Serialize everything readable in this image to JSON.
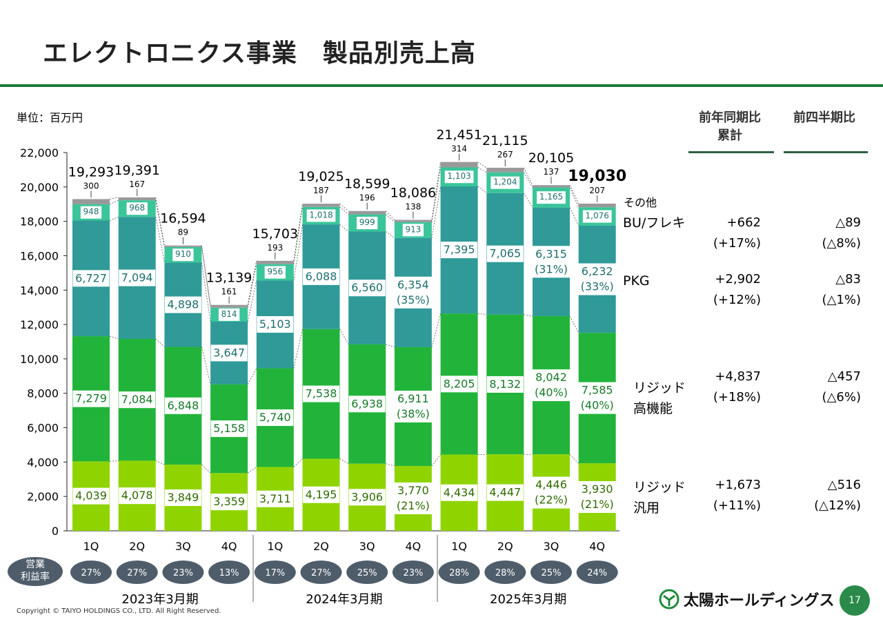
{
  "header": {
    "title": "エレクトロニクス事業　製品別売上高",
    "unit": "単位：百万円"
  },
  "compare": {
    "head_yoy": [
      "前年同期比",
      "累計"
    ],
    "head_qoq": "前四半期比",
    "rows": [
      {
        "label": [
          "BU/フレキ"
        ],
        "yoy": "+662",
        "yoy_pct": "(+17%)",
        "qoq": "△89",
        "qoq_pct": "(△8%)"
      },
      {
        "label": [
          "PKG"
        ],
        "yoy": "+2,902",
        "yoy_pct": "(+12%)",
        "qoq": "△83",
        "qoq_pct": "(△1%)"
      },
      {
        "label": [
          "リジッド",
          "高機能"
        ],
        "yoy": "+4,837",
        "yoy_pct": "(+18%)",
        "qoq": "△457",
        "qoq_pct": "(△6%)"
      },
      {
        "label": [
          "リジッド",
          "汎用"
        ],
        "yoy": "+1,673",
        "yoy_pct": "(+11%)",
        "qoq": "△516",
        "qoq_pct": "(△12%)"
      }
    ]
  },
  "chart_data": {
    "type": "bar",
    "stacked": true,
    "ylim": [
      0,
      22000
    ],
    "yticks": [
      "0",
      "2,000",
      "4,000",
      "6,000",
      "8,000",
      "10,000",
      "12,000",
      "14,000",
      "16,000",
      "18,000",
      "20,000",
      "22,000"
    ],
    "categories": [
      "1Q",
      "2Q",
      "3Q",
      "4Q",
      "1Q",
      "2Q",
      "3Q",
      "4Q",
      "1Q",
      "2Q",
      "3Q",
      "4Q"
    ],
    "groups": [
      "2023年3月期",
      "2024年3月期",
      "2025年3月期"
    ],
    "series": [
      {
        "name": "リジッド汎用",
        "color": "#8fd400",
        "values": [
          4039,
          4078,
          3849,
          3359,
          3711,
          4195,
          3906,
          3770,
          4434,
          4447,
          4446,
          3930
        ],
        "labels": [
          "4,039",
          "4,078",
          "3,849",
          "3,359",
          "3,711",
          "4,195",
          "3,906",
          "3,770",
          "4,434",
          "4,447",
          "4,446",
          "3,930"
        ],
        "pcts": [
          "",
          "",
          "",
          "",
          "",
          "",
          "",
          "(21%)",
          "",
          "",
          "(22%)",
          "(21%)"
        ]
      },
      {
        "name": "リジッド高機能",
        "color": "#22b43a",
        "values": [
          7279,
          7084,
          6848,
          5158,
          5740,
          7538,
          6938,
          6911,
          8205,
          8132,
          8042,
          7585
        ],
        "labels": [
          "7,279",
          "7,084",
          "6,848",
          "5,158",
          "5,740",
          "7,538",
          "6,938",
          "6,911",
          "8,205",
          "8,132",
          "8,042",
          "7,585"
        ],
        "pcts": [
          "",
          "",
          "",
          "",
          "",
          "",
          "",
          "(38%)",
          "",
          "",
          "(40%)",
          "(40%)"
        ]
      },
      {
        "name": "PKG",
        "color": "#2f9a98",
        "values": [
          6727,
          7094,
          4898,
          3647,
          5103,
          6088,
          6560,
          6354,
          7395,
          7065,
          6315,
          6232
        ],
        "labels": [
          "6,727",
          "7,094",
          "4,898",
          "3,647",
          "5,103",
          "6,088",
          "6,560",
          "6,354",
          "7,395",
          "7,065",
          "6,315",
          "6,232"
        ],
        "pcts": [
          "",
          "",
          "",
          "",
          "",
          "",
          "",
          "(35%)",
          "",
          "",
          "(31%)",
          "(33%)"
        ]
      },
      {
        "name": "BU/フレキ",
        "color": "#3ac59a",
        "values": [
          948,
          968,
          910,
          814,
          956,
          1018,
          999,
          913,
          1103,
          1204,
          1165,
          1076
        ],
        "labels": [
          "948",
          "968",
          "910",
          "814",
          "956",
          "1,018",
          "999",
          "913",
          "1,103",
          "1,204",
          "1,165",
          "1,076"
        ]
      },
      {
        "name": "その他",
        "color": "#999999",
        "values": [
          300,
          167,
          89,
          161,
          193,
          187,
          196,
          138,
          314,
          267,
          137,
          207
        ],
        "labels": [
          "300",
          "167",
          "89",
          "161",
          "193",
          "187",
          "196",
          "138",
          "314",
          "267",
          "137",
          "207"
        ]
      }
    ],
    "totals": [
      "19,293",
      "19,391",
      "16,594",
      "13,139",
      "15,703",
      "19,025",
      "18,599",
      "18,086",
      "21,451",
      "21,115",
      "20,105",
      "19,030"
    ],
    "margin_title": [
      "営業",
      "利益率"
    ],
    "margins": [
      "27%",
      "27%",
      "23%",
      "13%",
      "17%",
      "27%",
      "25%",
      "23%",
      "28%",
      "28%",
      "25%",
      "24%"
    ]
  },
  "footer": {
    "copyright": "Copyright © TAIYO HOLDINGS CO., LTD.  All Right Reserved.",
    "logo": "太陽ホールディングス",
    "page": "17"
  }
}
